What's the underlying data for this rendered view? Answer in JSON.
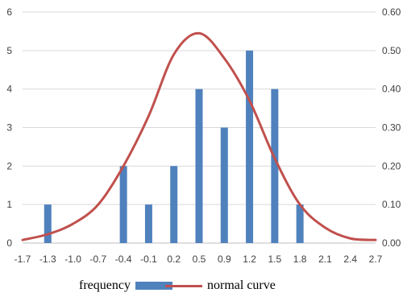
{
  "chart_data": {
    "type": "bar+line",
    "categories": [
      "-1.7",
      "-1.3",
      "-1.0",
      "-0.7",
      "-0.4",
      "-0.1",
      "0.2",
      "0.5",
      "0.9",
      "1.2",
      "1.5",
      "1.8",
      "2.1",
      "2.4",
      "2.7"
    ],
    "series": [
      {
        "name": "frequency",
        "kind": "bar",
        "axis": "left",
        "color": "#4f81bd",
        "values": [
          0,
          1,
          0,
          0,
          2,
          1,
          2,
          4,
          3,
          5,
          4,
          1,
          0,
          0,
          0
        ]
      },
      {
        "name": "normal curve",
        "kind": "smooth-line",
        "axis": "right",
        "color": "#c0504d",
        "values": [
          0.008,
          0.023,
          0.05,
          0.1,
          0.2,
          0.33,
          0.49,
          0.545,
          0.48,
          0.37,
          0.22,
          0.1,
          0.04,
          0.012,
          0.008
        ]
      }
    ],
    "left_axis": {
      "min": 0,
      "max": 6,
      "step": 1,
      "ticks": [
        "0",
        "1",
        "2",
        "3",
        "4",
        "5",
        "6"
      ]
    },
    "right_axis": {
      "min": 0,
      "max": 0.6,
      "step": 0.1,
      "ticks": [
        "0.00",
        "0.10",
        "0.20",
        "0.30",
        "0.40",
        "0.50",
        "0.60"
      ]
    },
    "grid": "horizontal",
    "legend_position": "bottom",
    "title": "",
    "xlabel": "",
    "ylabel": ""
  },
  "legend": {
    "frequency_label": "frequency",
    "curve_label": "normal curve"
  }
}
